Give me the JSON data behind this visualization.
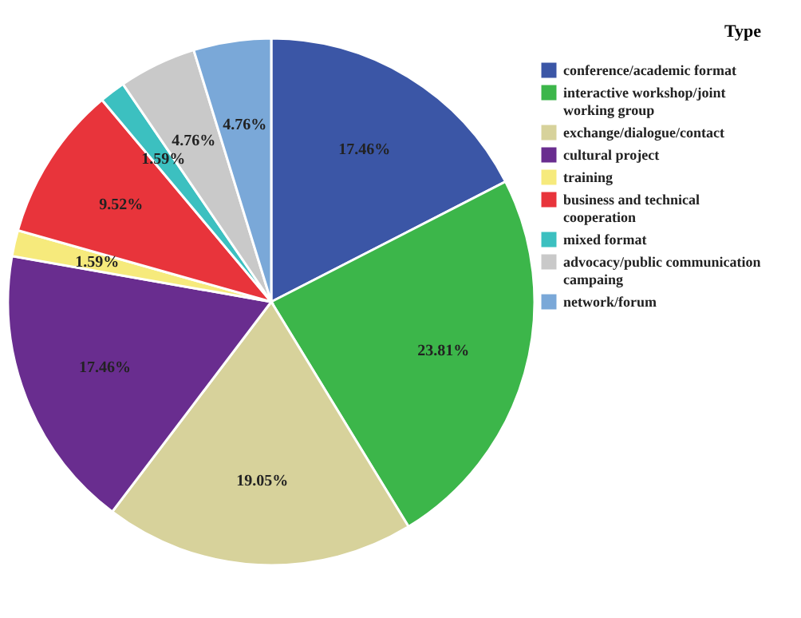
{
  "chart_data": {
    "type": "pie",
    "legend_title": "Type",
    "legend": "right",
    "categories": [
      "conference/academic  format",
      "interactive workshop/joint working group",
      "exchange/dialogue/contact",
      "cultural project",
      "  training",
      "business  and  technical cooperation",
      "mixed format",
      "advocacy/public communication campaing",
      " network/forum"
    ],
    "values": [
      17.46,
      23.81,
      19.05,
      17.46,
      1.59,
      9.52,
      1.59,
      4.76,
      4.76
    ],
    "colors": [
      "#3b56a6",
      "#3cb64a",
      "#d7d29b",
      "#692d8f",
      "#f6ea7c",
      "#e8343b",
      "#3cc0c0",
      "#c9c9c9",
      "#7aa8d8"
    ],
    "value_labels": [
      "17.46%",
      "23.81%",
      "19.05%",
      "17.46%",
      "1.59%",
      "9.52%",
      "1.59%",
      "4.76%",
      "4.76%"
    ]
  }
}
